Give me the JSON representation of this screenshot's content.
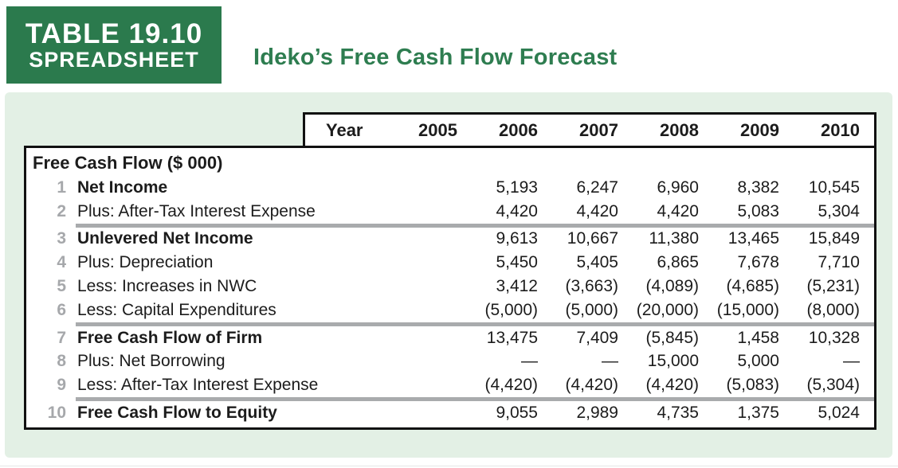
{
  "header": {
    "tag_line1": "TABLE 19.10",
    "tag_line2": "SPREADSHEET",
    "title": "Ideko’s Free Cash Flow Forecast"
  },
  "table": {
    "year_header": {
      "label": "Year",
      "years": [
        "2005",
        "2006",
        "2007",
        "2008",
        "2009",
        "2010"
      ]
    },
    "section_title": "Free Cash Flow ($ 000)",
    "rows": [
      {
        "num": "1",
        "label": "Net Income",
        "bold": true,
        "values": [
          "",
          "5,193",
          "6,247",
          "6,960",
          "8,382",
          "10,545"
        ]
      },
      {
        "num": "2",
        "label": "Plus: After-Tax Interest Expense",
        "bold": false,
        "values": [
          "",
          "4,420",
          "4,420",
          "4,420",
          "5,083",
          "5,304"
        ]
      },
      {
        "num": "3",
        "label": "Unlevered Net Income",
        "bold": true,
        "values": [
          "",
          "9,613",
          "10,667",
          "11,380",
          "13,465",
          "15,849"
        ]
      },
      {
        "num": "4",
        "label": "Plus: Depreciation",
        "bold": false,
        "values": [
          "",
          "5,450",
          "5,405",
          "6,865",
          "7,678",
          "7,710"
        ]
      },
      {
        "num": "5",
        "label": "Less: Increases in NWC",
        "bold": false,
        "values": [
          "",
          "3,412",
          "(3,663)",
          "(4,089)",
          "(4,685)",
          "(5,231)"
        ]
      },
      {
        "num": "6",
        "label": "Less: Capital Expenditures",
        "bold": false,
        "values": [
          "",
          "(5,000)",
          "(5,000)",
          "(20,000)",
          "(15,000)",
          "(8,000)"
        ]
      },
      {
        "num": "7",
        "label": "Free Cash Flow of Firm",
        "bold": true,
        "values": [
          "",
          "13,475",
          "7,409",
          "(5,845)",
          "1,458",
          "10,328"
        ]
      },
      {
        "num": "8",
        "label": "Plus: Net Borrowing",
        "bold": false,
        "values": [
          "",
          "—",
          "—",
          "15,000",
          "5,000",
          "—"
        ]
      },
      {
        "num": "9",
        "label": "Less: After-Tax Interest Expense",
        "bold": false,
        "values": [
          "",
          "(4,420)",
          "(4,420)",
          "(4,420)",
          "(5,083)",
          "(5,304)"
        ]
      },
      {
        "num": "10",
        "label": "Free Cash Flow to Equity",
        "bold": true,
        "values": [
          "",
          "9,055",
          "2,989",
          "4,735",
          "1,375",
          "5,024"
        ]
      }
    ]
  },
  "colors": {
    "tag_green": "#2b7a4d",
    "title_green": "#2e7d50",
    "band_green": "#e3f0e5",
    "divider_gray": "#a9abad",
    "row_number_gray": "#a6a8ab"
  }
}
